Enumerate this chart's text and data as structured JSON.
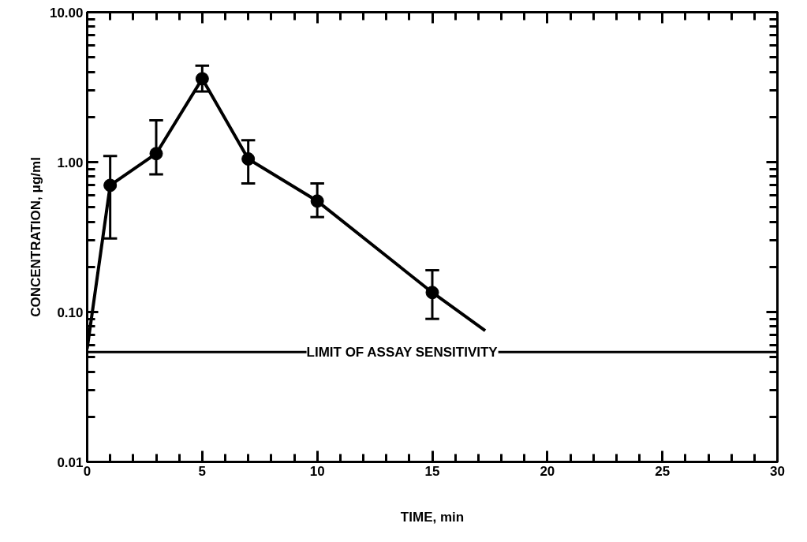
{
  "chart_data": {
    "type": "line",
    "xlabel": "TIME, min",
    "ylabel": "CONCENTRATION, μg/ml",
    "log": "y",
    "grid": false,
    "xlim": [
      0,
      30
    ],
    "ylim": [
      0.01,
      10
    ],
    "xticks": [
      0,
      5,
      10,
      15,
      20,
      25,
      30
    ],
    "yticks": [
      {
        "value": 0.01,
        "label": "0.01"
      },
      {
        "value": 0.1,
        "label": "0.10"
      },
      {
        "value": 1,
        "label": "1.00"
      },
      {
        "value": 10,
        "label": "10.00"
      }
    ],
    "series": [
      {
        "color": "#000000",
        "marker": "none",
        "x": [
          0,
          1,
          3,
          5,
          7,
          10,
          15,
          17.3
        ],
        "values": [
          0.057,
          0.7,
          1.14,
          3.6,
          1.05,
          0.55,
          0.135,
          0.075
        ]
      },
      {
        "type": "scatter",
        "color": "#000000",
        "marker": "circle",
        "x": [
          1,
          3,
          5,
          7,
          10,
          15
        ],
        "values": [
          0.7,
          1.14,
          3.6,
          1.05,
          0.55,
          0.135
        ],
        "errors": [
          [
            0.31,
            1.1
          ],
          [
            0.83,
            1.9
          ],
          [
            2.96,
            4.4
          ],
          [
            0.72,
            1.4
          ],
          [
            0.43,
            0.72
          ],
          [
            0.09,
            0.19
          ]
        ]
      }
    ],
    "ref_lines": [
      {
        "axis": "y",
        "value": 0.054,
        "label": "LIMIT OF ASSAY SENSITIVITY",
        "color": "#000000"
      }
    ]
  }
}
